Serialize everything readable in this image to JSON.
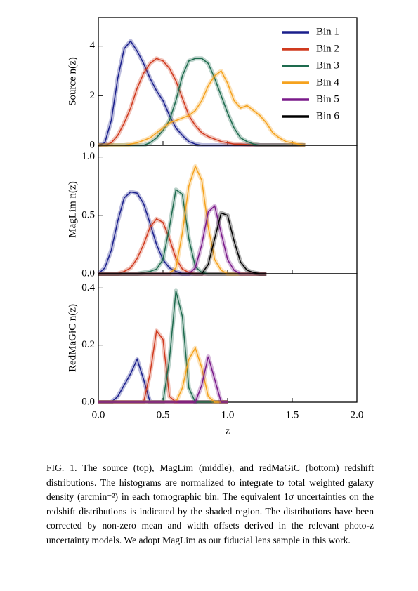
{
  "chart_data": [
    {
      "type": "line",
      "ylabel": "Source n(z)",
      "xlim": [
        0,
        2
      ],
      "ylim": [
        0,
        5.15
      ],
      "yticks": [
        0,
        2,
        4
      ],
      "x": [
        0,
        0.05,
        0.1,
        0.15,
        0.2,
        0.25,
        0.3,
        0.35,
        0.4,
        0.45,
        0.5,
        0.55,
        0.6,
        0.65,
        0.7,
        0.75,
        0.8,
        0.85,
        0.9,
        0.95,
        1.0,
        1.05,
        1.1,
        1.15,
        1.2,
        1.25,
        1.3,
        1.35,
        1.4,
        1.45,
        1.5,
        1.55,
        1.6
      ],
      "series": [
        {
          "name": "Bin 1",
          "color": "#1a1f8c",
          "values": [
            0,
            0.1,
            1.0,
            2.7,
            3.9,
            4.2,
            3.8,
            3.3,
            2.7,
            2.2,
            1.8,
            1.2,
            0.7,
            0.4,
            0.15,
            0.05,
            0,
            0,
            0,
            0,
            0,
            0,
            0,
            0,
            0,
            0,
            0,
            0,
            0,
            0,
            0,
            0,
            0
          ]
        },
        {
          "name": "Bin 2",
          "color": "#d03a1e",
          "values": [
            0,
            0,
            0.1,
            0.4,
            0.9,
            1.5,
            2.3,
            2.9,
            3.3,
            3.5,
            3.4,
            3.1,
            2.6,
            1.9,
            1.2,
            0.8,
            0.5,
            0.35,
            0.25,
            0.15,
            0.1,
            0.05,
            0.05,
            0.03,
            0.02,
            0,
            0,
            0,
            0,
            0,
            0,
            0,
            0
          ]
        },
        {
          "name": "Bin 3",
          "color": "#1e6b4e",
          "values": [
            0,
            0,
            0,
            0,
            0,
            0,
            0,
            0,
            0.1,
            0.3,
            0.6,
            1.0,
            1.8,
            2.8,
            3.4,
            3.5,
            3.5,
            3.3,
            2.7,
            2.0,
            1.3,
            0.7,
            0.3,
            0.15,
            0.05,
            0,
            0,
            0,
            0,
            0,
            0,
            0,
            0
          ]
        },
        {
          "name": "Bin 4",
          "color": "#f5a21e",
          "values": [
            0,
            0,
            0,
            0,
            0,
            0.05,
            0.1,
            0.2,
            0.3,
            0.5,
            0.7,
            0.9,
            1.0,
            1.1,
            1.2,
            1.4,
            1.8,
            2.4,
            2.8,
            3.0,
            2.5,
            1.8,
            1.5,
            1.6,
            1.4,
            1.2,
            0.9,
            0.5,
            0.3,
            0.15,
            0.1,
            0.05,
            0
          ]
        }
      ]
    },
    {
      "type": "line",
      "ylabel": "MagLim n(z)",
      "xlim": [
        0,
        2
      ],
      "ylim": [
        0,
        1.1
      ],
      "yticks": [
        {
          "value": 0,
          "label": "0.0"
        },
        0.5,
        {
          "value": 1,
          "label": "1.0"
        }
      ],
      "x": [
        0,
        0.05,
        0.1,
        0.15,
        0.2,
        0.25,
        0.3,
        0.35,
        0.4,
        0.45,
        0.5,
        0.55,
        0.6,
        0.65,
        0.7,
        0.75,
        0.8,
        0.85,
        0.9,
        0.95,
        1.0,
        1.05,
        1.1,
        1.15,
        1.2,
        1.25,
        1.3
      ],
      "series": [
        {
          "name": "Bin 1",
          "color": "#1a1f8c",
          "values": [
            0,
            0.05,
            0.2,
            0.45,
            0.65,
            0.7,
            0.69,
            0.6,
            0.43,
            0.25,
            0.12,
            0.05,
            0.02,
            0,
            0,
            0,
            0,
            0,
            0,
            0,
            0,
            0,
            0,
            0,
            0,
            0,
            0
          ]
        },
        {
          "name": "Bin 2",
          "color": "#d03a1e",
          "values": [
            0,
            0,
            0,
            0,
            0.02,
            0.05,
            0.13,
            0.25,
            0.4,
            0.47,
            0.44,
            0.3,
            0.13,
            0.04,
            0.01,
            0,
            0,
            0,
            0,
            0,
            0,
            0,
            0,
            0,
            0,
            0,
            0
          ]
        },
        {
          "name": "Bin 3",
          "color": "#1e6b4e",
          "values": [
            0,
            0,
            0,
            0,
            0,
            0,
            0,
            0.01,
            0.02,
            0.04,
            0.12,
            0.4,
            0.72,
            0.68,
            0.3,
            0.06,
            0.01,
            0,
            0,
            0,
            0,
            0,
            0,
            0,
            0,
            0,
            0
          ]
        },
        {
          "name": "Bin 4",
          "color": "#f5a21e",
          "values": [
            0,
            0,
            0,
            0,
            0,
            0,
            0,
            0,
            0,
            0,
            0,
            0,
            0.05,
            0.35,
            0.75,
            0.92,
            0.8,
            0.4,
            0.12,
            0.03,
            0,
            0,
            0,
            0,
            0,
            0,
            0
          ]
        },
        {
          "name": "Bin 5",
          "color": "#7a1a8a",
          "values": [
            0,
            0,
            0,
            0,
            0,
            0,
            0,
            0,
            0,
            0,
            0,
            0,
            0,
            0,
            0,
            0.05,
            0.25,
            0.53,
            0.58,
            0.35,
            0.12,
            0.03,
            0,
            0,
            0,
            0,
            0
          ]
        },
        {
          "name": "Bin 6",
          "color": "#000000",
          "values": [
            0,
            0,
            0,
            0,
            0,
            0,
            0,
            0,
            0,
            0,
            0,
            0,
            0,
            0,
            0,
            0,
            0,
            0.08,
            0.3,
            0.52,
            0.5,
            0.28,
            0.1,
            0.03,
            0.01,
            0,
            0
          ]
        }
      ]
    },
    {
      "type": "line",
      "ylabel": "RedMaGiC n(z)",
      "xlabel": "z",
      "xlim": [
        0,
        2
      ],
      "ylim": [
        0,
        0.45
      ],
      "xticks": [
        {
          "value": 0,
          "label": "0.0"
        },
        0.5,
        {
          "value": 1,
          "label": "1.0"
        },
        1.5,
        {
          "value": 2,
          "label": "2.0"
        }
      ],
      "yticks": [
        {
          "value": 0,
          "label": "0.0"
        },
        0.2,
        0.4
      ],
      "x": [
        0,
        0.05,
        0.1,
        0.15,
        0.2,
        0.25,
        0.3,
        0.35,
        0.4,
        0.45,
        0.5,
        0.55,
        0.6,
        0.65,
        0.7,
        0.75,
        0.8,
        0.85,
        0.9,
        0.95,
        1.0
      ],
      "series": [
        {
          "name": "Bin 1",
          "color": "#1a1f8c",
          "values": [
            0,
            0,
            0,
            0.02,
            0.06,
            0.1,
            0.15,
            0.08,
            0,
            0,
            0,
            0,
            0,
            0,
            0,
            0,
            0,
            0,
            0,
            0,
            0
          ]
        },
        {
          "name": "Bin 2",
          "color": "#d03a1e",
          "values": [
            0,
            0,
            0,
            0,
            0,
            0,
            0,
            0,
            0.1,
            0.25,
            0.22,
            0.02,
            0,
            0,
            0,
            0,
            0,
            0,
            0,
            0,
            0
          ]
        },
        {
          "name": "Bin 3",
          "color": "#1e6b4e",
          "values": [
            0,
            0,
            0,
            0,
            0,
            0,
            0,
            0,
            0,
            0,
            0,
            0.15,
            0.39,
            0.3,
            0.05,
            0,
            0,
            0,
            0,
            0,
            0
          ]
        },
        {
          "name": "Bin 4",
          "color": "#f5a21e",
          "values": [
            0,
            0,
            0,
            0,
            0,
            0,
            0,
            0,
            0,
            0,
            0,
            0,
            0,
            0.05,
            0.15,
            0.19,
            0.12,
            0.02,
            0,
            0,
            0
          ]
        },
        {
          "name": "Bin 5",
          "color": "#7a1a8a",
          "values": [
            0,
            0,
            0,
            0,
            0,
            0,
            0,
            0,
            0,
            0,
            0,
            0,
            0,
            0,
            0,
            0,
            0.06,
            0.16,
            0.08,
            0,
            0
          ]
        }
      ]
    }
  ],
  "caption": "FIG. 1. The source (top), MagLim (middle), and redMaGiC (bottom) redshift distributions. The histograms are normalized to integrate to total weighted galaxy density (arcmin⁻²) in each tomographic bin. The equivalent 1σ uncertainties on the redshift distributions is indicated by the shaded region. The distributions have been corrected by non-zero mean and width offsets derived in the relevant photo-z uncertainty models. We adopt MagLim as our fiducial lens sample in this work."
}
